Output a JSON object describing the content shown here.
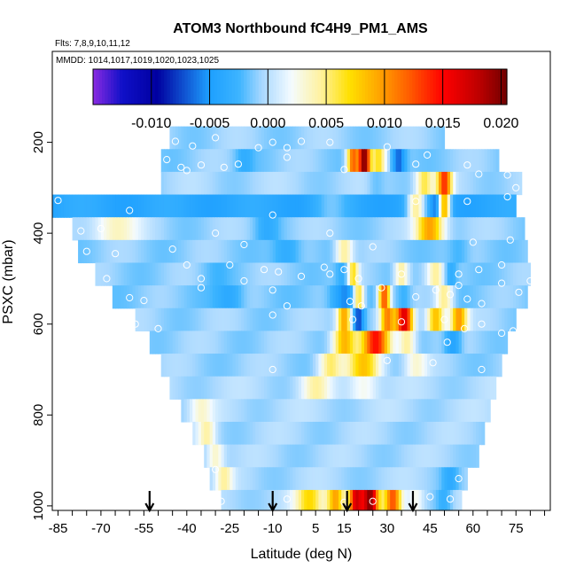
{
  "chart_data": {
    "type": "heatmap",
    "title": "ATOM3 Northbound fC4H9_PM1_AMS",
    "subtitle_flights": "Flts: 7,8,9,10,11,12",
    "subtitle_dates": "MMDD: 1014,1017,1019,1020,1023,1025",
    "xlabel": "Latitude (deg N)",
    "ylabel": "PSXC (mbar)",
    "xlim": [
      -87,
      87
    ],
    "ylim": [
      1010,
      0
    ],
    "x_ticks": [
      -85,
      -70,
      -55,
      -40,
      -25,
      -10,
      5,
      15,
      30,
      45,
      60,
      75
    ],
    "x_tick_labels": [
      "-85",
      "-70",
      "-55",
      "-40",
      "-25",
      "-10",
      "5",
      "15",
      "30",
      "45",
      "60",
      "75"
    ],
    "y_ticks": [
      200,
      400,
      600,
      800,
      1000
    ],
    "y_tick_labels": [
      "200",
      "400",
      "600",
      "800",
      "1000"
    ],
    "colorbar": {
      "range": [
        -0.015,
        0.0205
      ],
      "ticks": [
        -0.01,
        -0.005,
        0.0,
        0.005,
        0.01,
        0.015,
        0.02
      ],
      "tick_labels": [
        "-0.010",
        "-0.005",
        "0.000",
        "0.005",
        "0.010",
        "0.015",
        "0.020"
      ],
      "stops": [
        {
          "v": -0.015,
          "c": "#8a2be2"
        },
        {
          "v": -0.0125,
          "c": "#1010c8"
        },
        {
          "v": -0.0095,
          "c": "#0000a0"
        },
        {
          "v": -0.005,
          "c": "#1ea0ff"
        },
        {
          "v": -0.0025,
          "c": "#3cb4ff"
        },
        {
          "v": -0.0005,
          "c": "#a8d8ff"
        },
        {
          "v": 0.002,
          "c": "#f4fbff"
        },
        {
          "v": 0.0045,
          "c": "#fff2a0"
        },
        {
          "v": 0.007,
          "c": "#ffe000"
        },
        {
          "v": 0.0095,
          "c": "#ffa500"
        },
        {
          "v": 0.012,
          "c": "#ff6000"
        },
        {
          "v": 0.015,
          "c": "#ff0000"
        },
        {
          "v": 0.018,
          "c": "#c00000"
        },
        {
          "v": 0.0205,
          "c": "#700000"
        }
      ]
    },
    "layers": [
      {
        "p_top": 165,
        "p_bot": 215,
        "lat_min": -46,
        "lat_max": 50,
        "base": -0.0008,
        "features": []
      },
      {
        "p_top": 215,
        "p_bot": 265,
        "lat_min": -49,
        "lat_max": 69,
        "base": -0.001,
        "features": [
          {
            "lat": 18,
            "w": 2,
            "v": 0.012
          },
          {
            "lat": 22,
            "w": 2,
            "v": 0.02
          },
          {
            "lat": 27,
            "w": 2.5,
            "v": 0.006
          },
          {
            "lat": 34,
            "w": 2.5,
            "v": -0.007
          },
          {
            "lat": -20,
            "w": 3,
            "v": -0.003
          }
        ]
      },
      {
        "p_top": 265,
        "p_bot": 315,
        "lat_min": -49,
        "lat_max": 77,
        "base": -0.0005,
        "features": [
          {
            "lat": 43,
            "w": 3,
            "v": 0.006
          },
          {
            "lat": 50,
            "w": 2.5,
            "v": 0.013
          },
          {
            "lat": 26,
            "w": 3,
            "v": -0.002
          }
        ]
      },
      {
        "p_top": 315,
        "p_bot": 365,
        "lat_min": -87,
        "lat_max": 75,
        "base": -0.004,
        "features": [
          {
            "lat": 40,
            "w": 3,
            "v": 0.004
          },
          {
            "lat": 47,
            "w": 2,
            "v": -0.007
          },
          {
            "lat": 50,
            "w": 2,
            "v": 0.009
          },
          {
            "lat": 10,
            "w": 6,
            "v": -0.002
          }
        ]
      },
      {
        "p_top": 365,
        "p_bot": 415,
        "lat_min": -80,
        "lat_max": 78,
        "base": -0.0008,
        "features": [
          {
            "lat": -65,
            "w": 8,
            "v": 0.004
          },
          {
            "lat": -12,
            "w": 4,
            "v": -0.003
          },
          {
            "lat": 45,
            "w": 5,
            "v": 0.01
          }
        ]
      },
      {
        "p_top": 415,
        "p_bot": 465,
        "lat_min": -78,
        "lat_max": 79,
        "base": -0.001,
        "features": [
          {
            "lat": -5,
            "w": 5,
            "v": -0.004
          },
          {
            "lat": 15,
            "w": 3,
            "v": 0.005
          },
          {
            "lat": 55,
            "w": 4,
            "v": -0.003
          }
        ]
      },
      {
        "p_top": 465,
        "p_bot": 515,
        "lat_min": -72,
        "lat_max": 80,
        "base": -0.001,
        "features": [
          {
            "lat": 15,
            "w": 3,
            "v": -0.004
          },
          {
            "lat": 18,
            "w": 2,
            "v": 0.007
          },
          {
            "lat": 35,
            "w": 2.5,
            "v": 0.005
          },
          {
            "lat": 47,
            "w": 3,
            "v": 0.004
          },
          {
            "lat": 52,
            "w": 2.5,
            "v": -0.004
          },
          {
            "lat": -30,
            "w": 5,
            "v": -0.002
          }
        ]
      },
      {
        "p_top": 515,
        "p_bot": 565,
        "lat_min": -66,
        "lat_max": 79,
        "base": -0.0012,
        "features": [
          {
            "lat": -25,
            "w": 5,
            "v": -0.004
          },
          {
            "lat": 15,
            "w": 5,
            "v": -0.006
          },
          {
            "lat": 20,
            "w": 2,
            "v": 0.008
          },
          {
            "lat": 29,
            "w": 2,
            "v": 0.013
          },
          {
            "lat": 36,
            "w": 2.5,
            "v": -0.003
          },
          {
            "lat": 50,
            "w": 3,
            "v": 0.005
          }
        ]
      },
      {
        "p_top": 565,
        "p_bot": 615,
        "lat_min": -58,
        "lat_max": 75,
        "base": -0.0008,
        "features": [
          {
            "lat": 15,
            "w": 2.5,
            "v": 0.01
          },
          {
            "lat": 20,
            "w": 2,
            "v": -0.007
          },
          {
            "lat": 30,
            "w": 2.5,
            "v": 0.01
          },
          {
            "lat": 36,
            "w": 3,
            "v": 0.016
          },
          {
            "lat": 47,
            "w": 3,
            "v": 0.009
          },
          {
            "lat": 55,
            "w": 3,
            "v": 0.01
          }
        ]
      },
      {
        "p_top": 615,
        "p_bot": 665,
        "lat_min": -53,
        "lat_max": 72,
        "base": -0.0008,
        "features": [
          {
            "lat": 15,
            "w": 4,
            "v": 0.009
          },
          {
            "lat": 26,
            "w": 5,
            "v": 0.014
          },
          {
            "lat": 37,
            "w": 3,
            "v": 0.005
          },
          {
            "lat": 53,
            "w": 3,
            "v": -0.005
          }
        ]
      },
      {
        "p_top": 665,
        "p_bot": 715,
        "lat_min": -49,
        "lat_max": 70,
        "base": -0.0008,
        "features": [
          {
            "lat": 10,
            "w": 4,
            "v": 0.005
          },
          {
            "lat": 22,
            "w": 6,
            "v": 0.008
          },
          {
            "lat": 40,
            "w": 4,
            "v": 0.003
          }
        ]
      },
      {
        "p_top": 715,
        "p_bot": 765,
        "lat_min": -46,
        "lat_max": 68,
        "base": -0.0003,
        "features": [
          {
            "lat": 5,
            "w": 5,
            "v": 0.004
          },
          {
            "lat": 22,
            "w": 5,
            "v": 0.003
          }
        ]
      },
      {
        "p_top": 765,
        "p_bot": 815,
        "lat_min": -42,
        "lat_max": 66,
        "base": -0.0003,
        "features": [
          {
            "lat": -35,
            "w": 4,
            "v": 0.003
          }
        ]
      },
      {
        "p_top": 815,
        "p_bot": 865,
        "lat_min": -38,
        "lat_max": 64,
        "base": -0.0005,
        "features": [
          {
            "lat": -33,
            "w": 3,
            "v": 0.004
          }
        ]
      },
      {
        "p_top": 865,
        "p_bot": 915,
        "lat_min": -34,
        "lat_max": 62,
        "base": -0.0005,
        "features": [
          {
            "lat": -30,
            "w": 3,
            "v": 0.004
          }
        ]
      },
      {
        "p_top": 915,
        "p_bot": 965,
        "lat_min": -32,
        "lat_max": 58,
        "base": -0.0005,
        "features": [
          {
            "lat": -27,
            "w": 3,
            "v": 0.004
          },
          {
            "lat": 52,
            "w": 3,
            "v": -0.003
          }
        ]
      },
      {
        "p_top": 965,
        "p_bot": 1010,
        "lat_min": -28,
        "lat_max": 56,
        "base": -0.0003,
        "features": [
          {
            "lat": 3,
            "w": 5,
            "v": 0.007
          },
          {
            "lat": 12,
            "w": 3,
            "v": 0.01
          },
          {
            "lat": 19,
            "w": 2.5,
            "v": 0.016
          },
          {
            "lat": 24,
            "w": 3,
            "v": 0.019
          },
          {
            "lat": 32,
            "w": 3,
            "v": 0.012
          },
          {
            "lat": 40,
            "w": 3,
            "v": 0.003
          },
          {
            "lat": 50,
            "w": 3,
            "v": -0.003
          }
        ]
      }
    ],
    "flight_markers_lat": [
      -53,
      -10,
      16,
      39
    ],
    "sample_points": [
      [
        -44,
        198
      ],
      [
        -38,
        208
      ],
      [
        -30,
        190
      ],
      [
        -15,
        212
      ],
      [
        -10,
        200
      ],
      [
        -5,
        212
      ],
      [
        0,
        198
      ],
      [
        10,
        200
      ],
      [
        30,
        210
      ],
      [
        44,
        228
      ],
      [
        -47,
        238
      ],
      [
        -40,
        262
      ],
      [
        -35,
        250
      ],
      [
        -27,
        255
      ],
      [
        -22,
        248
      ],
      [
        -5,
        233
      ],
      [
        15,
        260
      ],
      [
        40,
        248
      ],
      [
        58,
        250
      ],
      [
        -58,
        268
      ],
      [
        -55,
        265
      ],
      [
        -52,
        262
      ],
      [
        -42,
        255
      ],
      [
        62,
        270
      ],
      [
        72,
        272
      ],
      [
        -85,
        328
      ],
      [
        -60,
        350
      ],
      [
        -10,
        360
      ],
      [
        40,
        330
      ],
      [
        58,
        330
      ],
      [
        75,
        300
      ],
      [
        72,
        320
      ],
      [
        -77,
        395
      ],
      [
        -70,
        390
      ],
      [
        -45,
        435
      ],
      [
        -30,
        400
      ],
      [
        -20,
        425
      ],
      [
        10,
        400
      ],
      [
        25,
        430
      ],
      [
        60,
        420
      ],
      [
        73,
        415
      ],
      [
        -75,
        440
      ],
      [
        -65,
        445
      ],
      [
        -40,
        470
      ],
      [
        -25,
        470
      ],
      [
        -13,
        480
      ],
      [
        -8,
        485
      ],
      [
        8,
        475
      ],
      [
        15,
        480
      ],
      [
        35,
        490
      ],
      [
        55,
        490
      ],
      [
        62,
        480
      ],
      [
        70,
        470
      ],
      [
        -68,
        500
      ],
      [
        -35,
        500
      ],
      [
        -20,
        505
      ],
      [
        0,
        495
      ],
      [
        10,
        490
      ],
      [
        20,
        500
      ],
      [
        28,
        520
      ],
      [
        47,
        525
      ],
      [
        55,
        515
      ],
      [
        70,
        510
      ],
      [
        80,
        505
      ],
      [
        82,
        485
      ],
      [
        -60,
        542
      ],
      [
        -55,
        548
      ],
      [
        -35,
        520
      ],
      [
        -10,
        525
      ],
      [
        -5,
        560
      ],
      [
        17,
        550
      ],
      [
        21,
        560
      ],
      [
        40,
        540
      ],
      [
        52,
        535
      ],
      [
        58,
        545
      ],
      [
        63,
        555
      ],
      [
        76,
        530
      ],
      [
        -58,
        600
      ],
      [
        -50,
        610
      ],
      [
        -10,
        580
      ],
      [
        18,
        590
      ],
      [
        35,
        595
      ],
      [
        50,
        590
      ],
      [
        57,
        610
      ],
      [
        63,
        600
      ],
      [
        70,
        620
      ],
      [
        74,
        615
      ],
      [
        -10,
        700
      ],
      [
        30,
        680
      ],
      [
        46,
        685
      ],
      [
        51,
        640
      ],
      [
        63,
        700
      ],
      [
        -30,
        920
      ],
      [
        55,
        940
      ],
      [
        60,
        930
      ],
      [
        -28,
        990
      ],
      [
        -5,
        985
      ],
      [
        15,
        992
      ],
      [
        25,
        990
      ],
      [
        45,
        980
      ],
      [
        52,
        985
      ],
      [
        63,
        978
      ]
    ]
  }
}
